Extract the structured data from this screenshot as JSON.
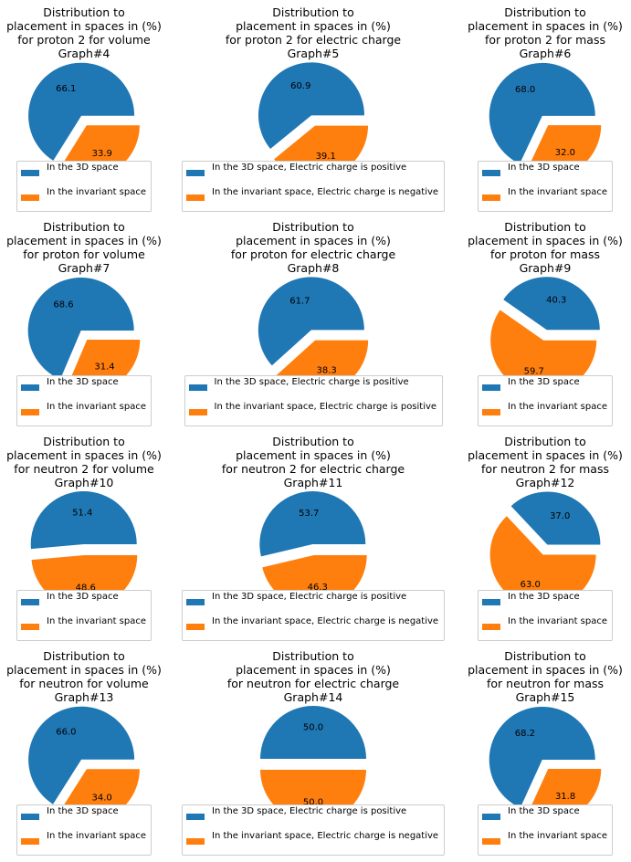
{
  "colors": {
    "series_3d": "#1f77b4",
    "series_invariant": "#ff7f0e"
  },
  "chart_data": [
    {
      "type": "pie",
      "title": [
        "Distribution to",
        "placement in spaces in (%)",
        "for proton 2 for volume",
        "Graph#4"
      ],
      "labels": [
        "In the 3D space",
        "In the invariant space"
      ],
      "values": [
        66.1,
        33.9
      ],
      "value_labels": [
        "66.1",
        "33.9"
      ],
      "legend": "bottom"
    },
    {
      "type": "pie",
      "title": [
        "Distribution to",
        "placement in spaces in (%)",
        "for proton 2 for electric charge",
        "Graph#5"
      ],
      "labels": [
        "In the 3D space, Electric charge is positive",
        "In the invariant space, Electric charge is negative"
      ],
      "values": [
        60.9,
        39.1
      ],
      "value_labels": [
        "60.9",
        "39.1"
      ],
      "legend": "bottom"
    },
    {
      "type": "pie",
      "title": [
        "Distribution to",
        "placement in spaces in (%)",
        "for proton 2 for mass",
        "Graph#6"
      ],
      "labels": [
        "In the 3D space",
        "In the invariant space"
      ],
      "values": [
        68.0,
        32.0
      ],
      "value_labels": [
        "68.0",
        "32.0"
      ],
      "legend": "bottom"
    },
    {
      "type": "pie",
      "title": [
        "Distribution to",
        "placement in spaces in (%)",
        "for proton for volume",
        "Graph#7"
      ],
      "labels": [
        "In the 3D space",
        "In the invariant space"
      ],
      "values": [
        68.6,
        31.4
      ],
      "value_labels": [
        "68.6",
        "31.4"
      ],
      "legend": "bottom"
    },
    {
      "type": "pie",
      "title": [
        "Distribution to",
        "placement in spaces in (%)",
        "for proton for electric charge",
        "Graph#8"
      ],
      "labels": [
        "In the 3D space, Electric charge is positive",
        "In the invariant space, Electric charge is positive"
      ],
      "values": [
        61.7,
        38.3
      ],
      "value_labels": [
        "61.7",
        "38.3"
      ],
      "legend": "bottom"
    },
    {
      "type": "pie",
      "title": [
        "Distribution to",
        "placement in spaces in (%)",
        "for proton for mass",
        "Graph#9"
      ],
      "labels": [
        "In the 3D space",
        "In the invariant space"
      ],
      "values": [
        40.3,
        59.7
      ],
      "value_labels": [
        "40.3",
        "59.7"
      ],
      "legend": "bottom"
    },
    {
      "type": "pie",
      "title": [
        "Distribution to",
        "placement in spaces in (%)",
        "for neutron 2 for volume",
        "Graph#10"
      ],
      "labels": [
        "In the 3D space",
        "In the invariant space"
      ],
      "values": [
        51.4,
        48.6
      ],
      "value_labels": [
        "51.4",
        "48.6"
      ],
      "legend": "bottom"
    },
    {
      "type": "pie",
      "title": [
        "Distribution to",
        "placement in spaces in (%)",
        "for neutron 2 for electric charge",
        "Graph#11"
      ],
      "labels": [
        "In the 3D space, Electric charge is positive",
        "In the invariant space, Electric charge is negative"
      ],
      "values": [
        53.7,
        46.3
      ],
      "value_labels": [
        "53.7",
        "46.3"
      ],
      "legend": "bottom"
    },
    {
      "type": "pie",
      "title": [
        "Distribution to",
        "placement in spaces in (%)",
        "for neutron 2 for mass",
        "Graph#12"
      ],
      "labels": [
        "In the 3D space",
        "In the invariant space"
      ],
      "values": [
        37.0,
        63.0
      ],
      "value_labels": [
        "37.0",
        "63.0"
      ],
      "legend": "bottom"
    },
    {
      "type": "pie",
      "title": [
        "Distribution to",
        "placement in spaces in (%)",
        "for neutron for volume",
        "Graph#13"
      ],
      "labels": [
        "In the 3D space",
        "In the invariant space"
      ],
      "values": [
        66.0,
        34.0
      ],
      "value_labels": [
        "66.0",
        "34.0"
      ],
      "legend": "bottom"
    },
    {
      "type": "pie",
      "title": [
        "Distribution to",
        "placement in spaces in (%)",
        "for neutron for electric charge",
        "Graph#14"
      ],
      "labels": [
        "In the 3D space, Electric charge is positive",
        "In the invariant space, Electric charge is negative"
      ],
      "values": [
        50.0,
        50.0
      ],
      "value_labels": [
        "50.0",
        "50.0"
      ],
      "legend": "bottom"
    },
    {
      "type": "pie",
      "title": [
        "Distribution to",
        "placement in spaces in (%)",
        "for neutron for mass",
        "Graph#15"
      ],
      "labels": [
        "In the 3D space",
        "In the invariant space"
      ],
      "values": [
        68.2,
        31.8
      ],
      "value_labels": [
        "68.2",
        "31.8"
      ],
      "legend": "bottom"
    }
  ]
}
